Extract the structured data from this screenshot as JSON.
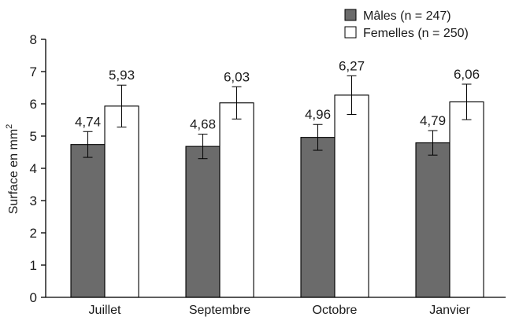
{
  "chart_data": {
    "type": "bar",
    "categories": [
      "Juillet",
      "Septembre",
      "Octobre",
      "Janvier"
    ],
    "series": [
      {
        "name": "Mâles (n = 247)",
        "color": "#6b6b6b",
        "values": [
          4.74,
          4.68,
          4.96,
          4.79
        ],
        "value_labels": [
          "4,74",
          "4,68",
          "4,96",
          "4,79"
        ],
        "errors": [
          0.4,
          0.38,
          0.4,
          0.38
        ]
      },
      {
        "name": "Femelles (n = 250)",
        "color": "#ffffff",
        "values": [
          5.93,
          6.03,
          6.27,
          6.06
        ],
        "value_labels": [
          "5,93",
          "6,03",
          "6,27",
          "6,06"
        ],
        "errors": [
          0.65,
          0.5,
          0.6,
          0.55
        ]
      }
    ],
    "ylabel": "Surface en mm²",
    "ylabel_main": "Surface en mm",
    "ylabel_sup": "2",
    "ylim": [
      0,
      8
    ],
    "yticks": [
      "0",
      "1",
      "2",
      "3",
      "4",
      "5",
      "6",
      "7",
      "8"
    ],
    "legend_position": "top-right",
    "grid": false
  }
}
